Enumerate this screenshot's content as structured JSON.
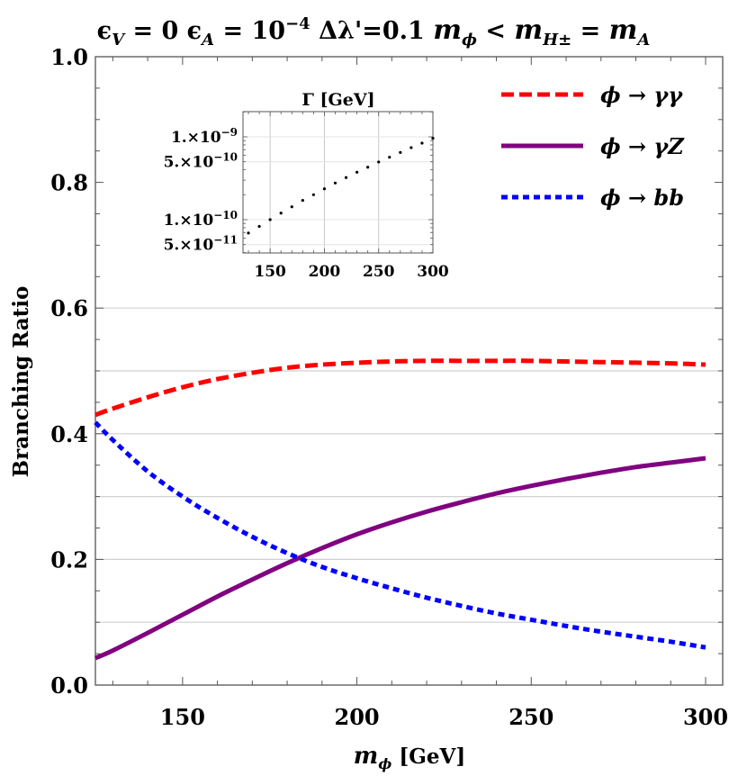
{
  "title": {
    "parts": [
      "ϵ",
      "V",
      " = 0  ϵ",
      "A",
      " = 10",
      "−4",
      "  Δλ'=0.1   ",
      "m",
      "ϕ",
      " < ",
      "m",
      "H±",
      " = ",
      "m",
      "A"
    ],
    "text": "ϵ_V = 0  ϵ_A = 10^−4  Δλ'=0.1   m_ϕ < m_H± = m_A"
  },
  "axes": {
    "xlabel_main": "m",
    "xlabel_sub": "ϕ",
    "xlabel_unit": " [GeV]",
    "ylabel": "Branching Ratio",
    "xticks": [
      "150",
      "200",
      "250",
      "300"
    ],
    "yticks": [
      "0.0",
      "0.2",
      "0.4",
      "0.6",
      "0.8",
      "1.0"
    ]
  },
  "legend": [
    {
      "label": "ϕ → γγ",
      "color": "#ff0000",
      "style": "dashed"
    },
    {
      "label": "ϕ → γZ",
      "color": "#800080",
      "style": "solid"
    },
    {
      "label": "ϕ → bb",
      "color": "#0000ff",
      "style": "dotted"
    }
  ],
  "inset": {
    "title": "Γ [GeV]",
    "xticks": [
      "150",
      "200",
      "250",
      "300"
    ],
    "yticks": [
      {
        "mant": "1.×10",
        "exp": "−9"
      },
      {
        "mant": "5.×10",
        "exp": "−10"
      },
      {
        "mant": "1.×10",
        "exp": "−10"
      },
      {
        "mant": "5.×10",
        "exp": "−11"
      }
    ]
  },
  "chart_data": [
    {
      "type": "line",
      "title": "ϵ_V = 0  ϵ_A = 10^-4  Δλ'=0.1   m_ϕ < m_H± = m_A",
      "xlabel": "m_ϕ [GeV]",
      "ylabel": "Branching Ratio",
      "xlim": [
        125,
        300
      ],
      "ylim": [
        0,
        1.0
      ],
      "grid": "horizontal lines at 0.1–0.6",
      "legend_position": "upper right",
      "x": [
        125,
        130,
        140,
        150,
        160,
        170,
        180,
        190,
        200,
        210,
        220,
        230,
        240,
        250,
        260,
        270,
        280,
        290,
        300
      ],
      "series": [
        {
          "name": "ϕ → γγ",
          "color": "#ff0000",
          "style": "dashed",
          "values": [
            0.43,
            0.44,
            0.458,
            0.474,
            0.487,
            0.497,
            0.505,
            0.51,
            0.513,
            0.515,
            0.516,
            0.516,
            0.516,
            0.516,
            0.515,
            0.514,
            0.513,
            0.512,
            0.51
          ]
        },
        {
          "name": "ϕ → γZ",
          "color": "#800080",
          "style": "solid",
          "values": [
            0.043,
            0.055,
            0.083,
            0.112,
            0.141,
            0.168,
            0.194,
            0.218,
            0.24,
            0.259,
            0.276,
            0.291,
            0.305,
            0.317,
            0.328,
            0.338,
            0.347,
            0.354,
            0.361
          ]
        },
        {
          "name": "ϕ → bb",
          "color": "#0000ff",
          "style": "dotted",
          "values": [
            0.418,
            0.39,
            0.34,
            0.3,
            0.266,
            0.236,
            0.21,
            0.188,
            0.17,
            0.154,
            0.139,
            0.126,
            0.114,
            0.104,
            0.094,
            0.085,
            0.077,
            0.069,
            0.06
          ]
        }
      ]
    },
    {
      "type": "scatter",
      "title": "Γ [GeV]",
      "xlabel": "",
      "ylabel": "",
      "yscale": "log",
      "xlim": [
        125,
        300
      ],
      "ylim": [
        4e-11,
        1.4e-09
      ],
      "x": [
        130,
        140,
        150,
        160,
        170,
        180,
        190,
        200,
        210,
        220,
        230,
        240,
        250,
        260,
        270,
        280,
        290,
        300
      ],
      "values": [
        6.9e-11,
        8.3e-11,
        1e-10,
        1.2e-10,
        1.43e-10,
        1.71e-10,
        2e-10,
        2.36e-10,
        2.77e-10,
        3.22e-10,
        3.74e-10,
        4.3e-10,
        4.97e-10,
        5.67e-10,
        6.48e-10,
        7.41e-10,
        8.4e-10,
        9.6e-10
      ]
    }
  ]
}
